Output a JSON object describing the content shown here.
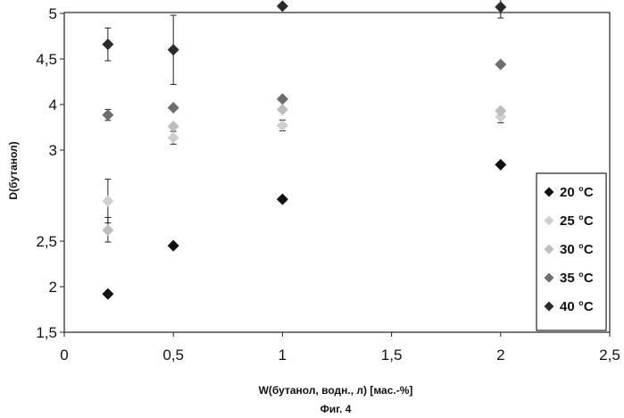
{
  "chart_data": {
    "type": "scatter",
    "title": "",
    "xlabel": "W(бутанол, водн., л) [мас.-%]",
    "ylabel": "D(бутанол)",
    "caption": "Фиг. 4",
    "xlim": [
      0,
      2.5
    ],
    "ylim": [
      1.5,
      5
    ],
    "x_ticks": [
      0,
      0.5,
      1,
      1.5,
      2,
      2.5
    ],
    "x_tick_labels": [
      "0",
      "0,5",
      "1",
      "1,5",
      "2",
      "2,5"
    ],
    "y_ticks": [
      1.5,
      2,
      2.5,
      3,
      4,
      4.5,
      5
    ],
    "y_tick_labels": [
      "1,5",
      "2",
      "2,5",
      "3",
      "4",
      "4,5",
      "5"
    ],
    "grid": false,
    "legend_position": "right",
    "series": [
      {
        "name": "20 °C",
        "color": "#111111",
        "x": [
          0.2,
          0.5,
          1,
          2
        ],
        "y": [
          1.92,
          2.45,
          2.73,
          2.92
        ],
        "err": [
          0,
          0,
          0,
          0
        ]
      },
      {
        "name": "25 °C",
        "color": "#cfcfcf",
        "x": [
          0.2,
          0.5,
          1,
          2
        ],
        "y": [
          2.72,
          3.27,
          3.54,
          3.73
        ],
        "err": [
          0.12,
          0.14,
          0.12,
          0.13
        ]
      },
      {
        "name": "30 °C",
        "color": "#bdbdbd",
        "x": [
          0.2,
          0.5,
          1,
          2
        ],
        "y": [
          2.56,
          3.52,
          3.89,
          3.86
        ],
        "err": [
          0.07,
          0,
          0,
          0
        ]
      },
      {
        "name": "35 °C",
        "color": "#6e6e6e",
        "x": [
          0.2,
          0.5,
          1,
          2
        ],
        "y": [
          3.77,
          3.93,
          4.06,
          4.44
        ],
        "err": [
          0.12,
          0,
          0,
          0
        ]
      },
      {
        "name": "40 °C",
        "color": "#2b2b2b",
        "x": [
          0.2,
          0.5,
          1,
          2
        ],
        "y": [
          4.66,
          4.6,
          5.08,
          5.07
        ],
        "err": [
          0.18,
          0.38,
          0,
          0.12
        ]
      }
    ]
  }
}
